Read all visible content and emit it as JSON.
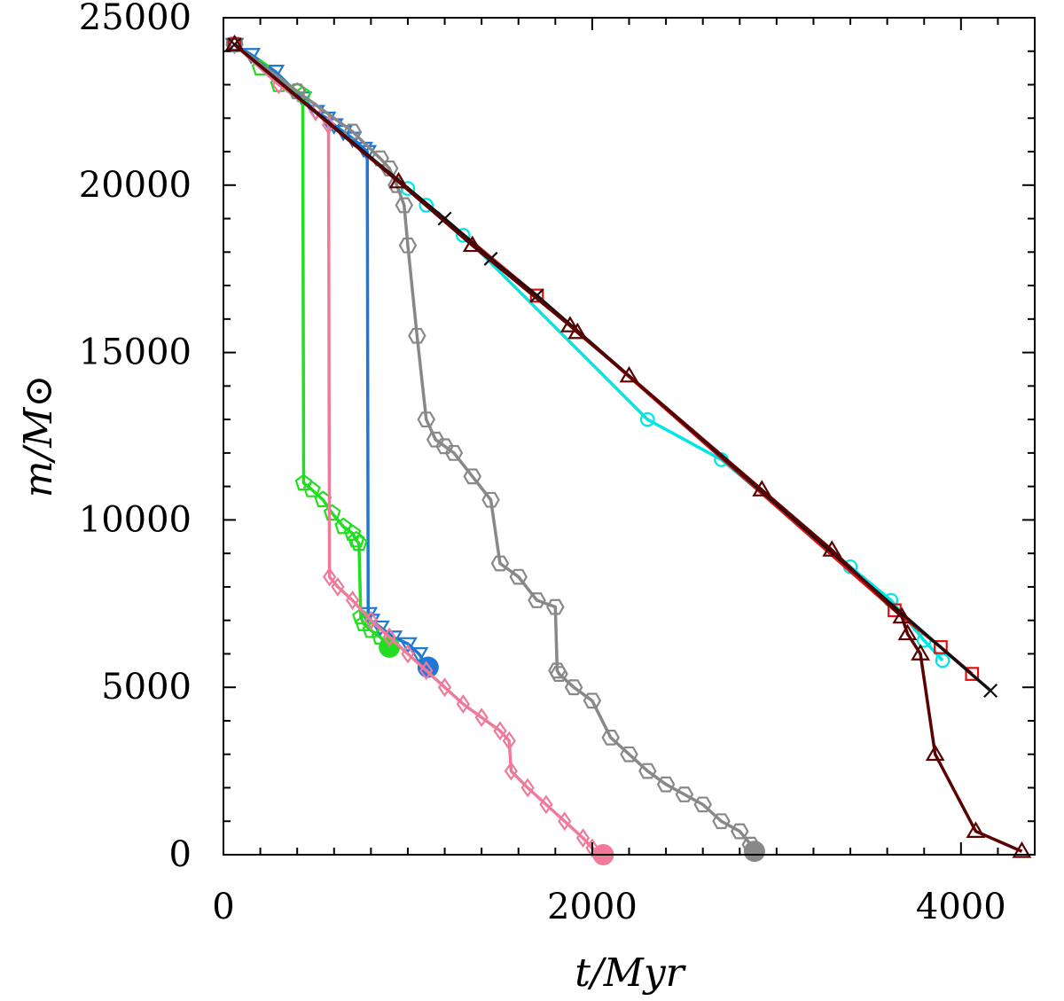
{
  "chart_data": {
    "type": "line",
    "xlabel": "t/Myr",
    "ylabel": "m/M⊙",
    "xlim": [
      0,
      4400
    ],
    "ylim": [
      0,
      25000
    ],
    "x_ticks": [
      0,
      2000,
      4000
    ],
    "y_ticks": [
      0,
      5000,
      10000,
      15000,
      20000,
      25000
    ],
    "x_minor_step": 200,
    "y_minor_step": 1000,
    "grid": false,
    "legend": "none",
    "series": [
      {
        "color": "#1f77d6",
        "marker": "triangle-down",
        "end_marker": "filled-circle",
        "x": [
          60,
          150,
          280,
          430,
          500,
          560,
          600,
          650,
          700,
          760,
          780,
          785,
          800,
          850,
          920,
          1000,
          1060,
          1110
        ],
        "y": [
          24200,
          23900,
          23400,
          22600,
          22200,
          22000,
          21800,
          21600,
          21400,
          21100,
          21000,
          7200,
          7000,
          6800,
          6500,
          6300,
          6000,
          5600
        ]
      },
      {
        "color": "#22dd22",
        "marker": "pentagon",
        "end_marker": "filled-circle",
        "x": [
          60,
          200,
          300,
          400,
          430,
          435,
          480,
          540,
          590,
          650,
          700,
          720,
          735,
          745,
          760,
          800,
          850,
          900
        ],
        "y": [
          24200,
          23500,
          23000,
          22800,
          22700,
          11100,
          10900,
          10600,
          10200,
          9800,
          9600,
          9400,
          9300,
          7100,
          6900,
          6700,
          6500,
          6200
        ]
      },
      {
        "color": "#ef7a9a",
        "marker": "diamond",
        "end_marker": "filled-circle",
        "x": [
          60,
          300,
          500,
          570,
          575,
          620,
          700,
          800,
          900,
          1000,
          1100,
          1200,
          1300,
          1400,
          1500,
          1550,
          1560,
          1650,
          1750,
          1850,
          1950,
          2000,
          2060
        ],
        "y": [
          24200,
          23000,
          22200,
          21800,
          8300,
          8000,
          7600,
          7000,
          6500,
          6000,
          5500,
          5000,
          4500,
          4100,
          3700,
          3400,
          2500,
          2000,
          1500,
          1000,
          500,
          200,
          0
        ]
      },
      {
        "color": "#888888",
        "marker": "hexagon",
        "end_marker": "filled-circle",
        "x": [
          60,
          400,
          700,
          850,
          900,
          940,
          980,
          1000,
          1050,
          1100,
          1150,
          1200,
          1250,
          1350,
          1450,
          1500,
          1600,
          1700,
          1800,
          1810,
          1820,
          1900,
          2000,
          2100,
          2200,
          2300,
          2400,
          2500,
          2600,
          2700,
          2800,
          2860,
          2880
        ],
        "y": [
          24200,
          22800,
          21600,
          20800,
          20500,
          20000,
          19400,
          18200,
          15500,
          13000,
          12400,
          12200,
          12000,
          11300,
          10600,
          8700,
          8300,
          7600,
          7400,
          5500,
          5400,
          5000,
          4600,
          3500,
          3000,
          2500,
          2100,
          1800,
          1500,
          1000,
          700,
          300,
          100
        ]
      },
      {
        "color": "#00e5e5",
        "marker": "circle",
        "x": [
          60,
          1000,
          1100,
          1300,
          2300,
          2700,
          3400,
          3620,
          3800,
          3900
        ],
        "y": [
          24200,
          19900,
          19400,
          18500,
          13000,
          11800,
          8600,
          7600,
          6400,
          5800
        ]
      },
      {
        "color": "#e01010",
        "marker": "square",
        "x": [
          60,
          1700,
          3640,
          3890,
          4060
        ],
        "y": [
          24200,
          16700,
          7300,
          6200,
          5400
        ]
      },
      {
        "color": "#111111",
        "marker": "cross",
        "x": [
          60,
          1200,
          1450,
          1700,
          4160
        ],
        "y": [
          24200,
          19000,
          17800,
          16700,
          4900
        ]
      },
      {
        "color": "#5a0000",
        "marker": "triangle-up",
        "x": [
          60,
          950,
          1350,
          1880,
          1920,
          2200,
          2920,
          3300,
          3680,
          3710,
          3780,
          3860,
          4080,
          4330
        ],
        "y": [
          24200,
          20100,
          18200,
          15800,
          15600,
          14300,
          10900,
          9100,
          7100,
          6600,
          6000,
          3000,
          700,
          100
        ]
      }
    ]
  }
}
